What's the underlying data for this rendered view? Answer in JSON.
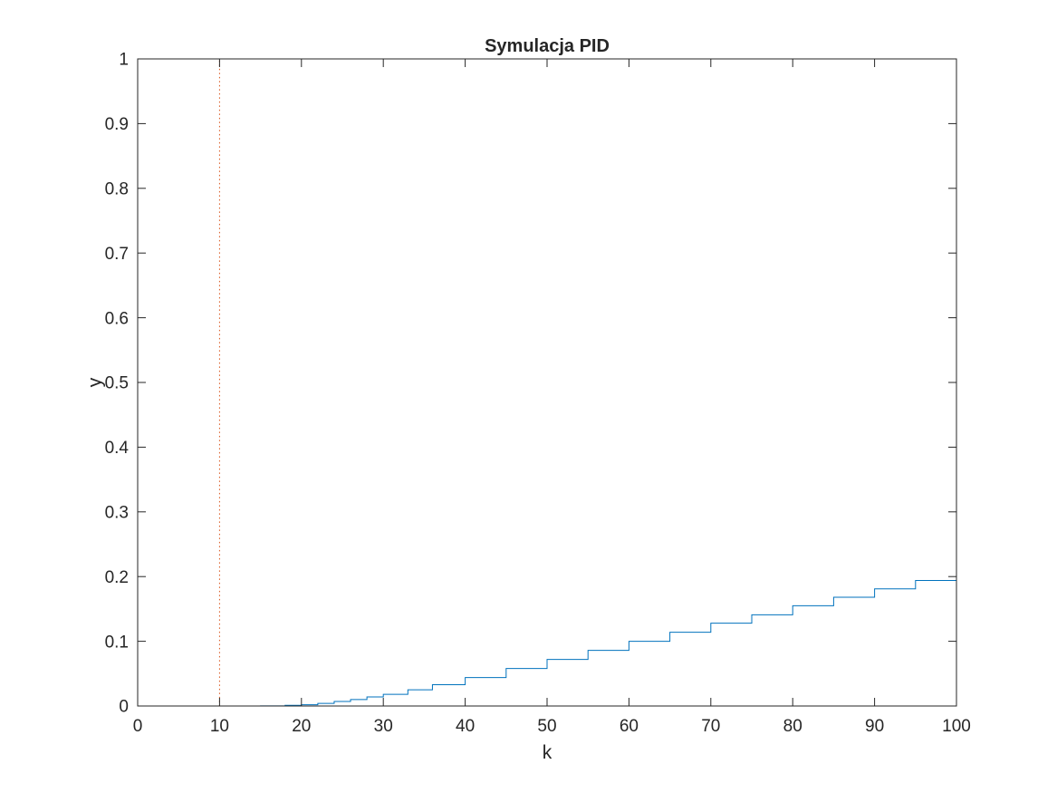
{
  "chart_data": {
    "type": "line",
    "title": "Symulacja  PID",
    "xlabel": "k",
    "ylabel": "y",
    "xlim": [
      0,
      100
    ],
    "ylim": [
      0,
      1
    ],
    "xticks": [
      0,
      10,
      20,
      30,
      40,
      50,
      60,
      70,
      80,
      90,
      100
    ],
    "yticks": [
      0,
      0.1,
      0.2,
      0.3,
      0.4,
      0.5,
      0.6,
      0.7,
      0.8,
      0.9,
      1
    ],
    "ytick_labels": [
      "0",
      "0.1",
      "0.2",
      "0.3",
      "0.4",
      "0.5",
      "0.6",
      "0.7",
      "0.8",
      "0.9",
      "1"
    ],
    "grid": false,
    "series": [
      {
        "style": "stairs",
        "color": "#0072BD",
        "x": [
          1,
          10,
          15,
          18,
          20,
          22,
          24,
          26,
          28,
          30,
          33,
          36,
          40,
          45,
          50,
          55,
          60,
          65,
          70,
          75,
          80,
          85,
          90,
          95,
          100
        ],
        "values": [
          0,
          0,
          0.0002,
          0.001,
          0.002,
          0.004,
          0.007,
          0.01,
          0.014,
          0.018,
          0.025,
          0.033,
          0.044,
          0.058,
          0.072,
          0.086,
          0.1,
          0.114,
          0.128,
          0.141,
          0.155,
          0.168,
          0.181,
          0.194,
          0.206
        ]
      },
      {
        "style": "stairs-dotted",
        "color": "#D95319",
        "x": [
          0,
          10,
          10,
          100
        ],
        "values": [
          0,
          0,
          1,
          1
        ]
      }
    ]
  }
}
